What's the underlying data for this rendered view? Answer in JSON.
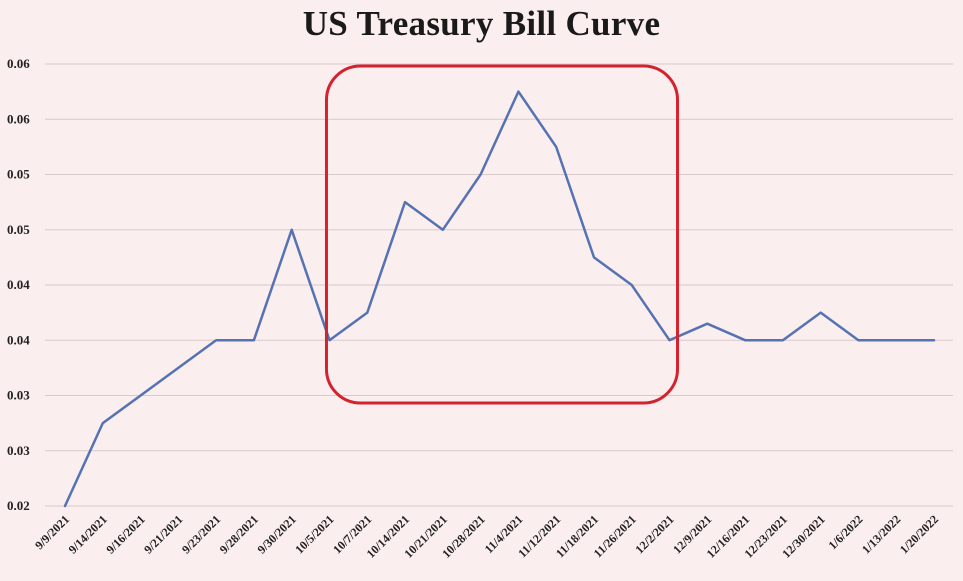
{
  "chart_data": {
    "type": "line",
    "title": "US Treasury Bill Curve",
    "xlabel": "",
    "ylabel": "",
    "ylim": [
      0.02,
      0.06
    ],
    "y_tick_values": [
      0.02,
      0.025,
      0.03,
      0.035,
      0.04,
      0.045,
      0.05,
      0.055,
      0.06
    ],
    "y_tick_labels": [
      "0.02",
      "0.03",
      "0.03",
      "0.04",
      "0.04",
      "0.05",
      "0.05",
      "0.06",
      "0.06"
    ],
    "grid": true,
    "categories": [
      "9/9/2021",
      "9/14/2021",
      "9/16/2021",
      "9/21/2021",
      "9/23/2021",
      "9/28/2021",
      "9/30/2021",
      "10/5/2021",
      "10/7/2021",
      "10/14/2021",
      "10/21/2021",
      "10/28/2021",
      "11/4/2021",
      "11/12/2021",
      "11/18/2021",
      "11/26/2021",
      "12/2/2021",
      "12/9/2021",
      "12/16/2021",
      "12/23/2021",
      "12/30/2021",
      "1/6/2022",
      "1/13/2022",
      "1/20/2022"
    ],
    "series": [
      {
        "values": [
          0.02,
          0.0275,
          0.03,
          0.0325,
          0.035,
          0.035,
          0.045,
          0.035,
          0.0375,
          0.0475,
          0.045,
          0.05,
          0.0575,
          0.0525,
          0.0425,
          0.04,
          0.035,
          0.0365,
          0.035,
          0.035,
          0.0375,
          0.035,
          0.035,
          0.035
        ],
        "color": "#5572b2"
      }
    ],
    "highlight_box": {
      "from_category": "10/5/2021",
      "to_category": "12/2/2021",
      "color": "#d3232e"
    }
  }
}
